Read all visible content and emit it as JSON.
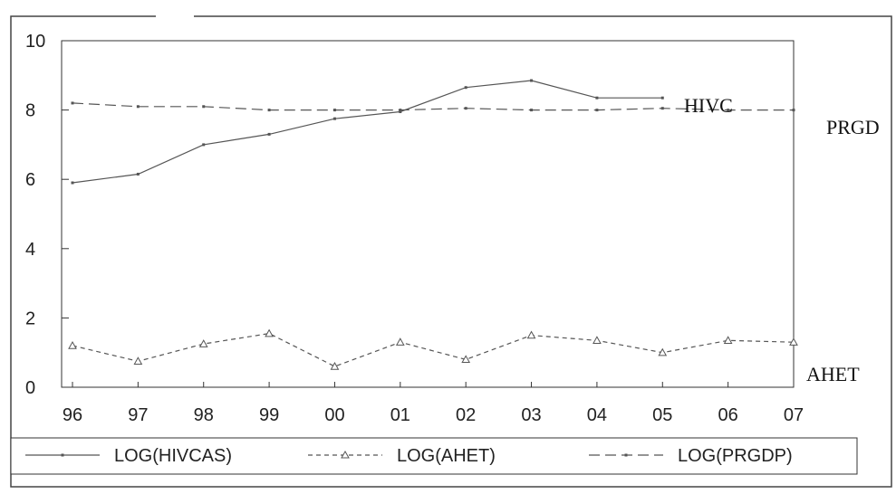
{
  "chart_data": {
    "type": "line",
    "title": "",
    "xlabel": "",
    "ylabel": "",
    "categories": [
      "96",
      "97",
      "98",
      "99",
      "00",
      "01",
      "02",
      "03",
      "04",
      "05",
      "06",
      "07"
    ],
    "ylim": [
      0,
      10
    ],
    "yticks": [
      "0",
      "2",
      "4",
      "6",
      "8",
      "10"
    ],
    "grid": false,
    "legend_position": "bottom",
    "series": [
      {
        "name": "LOG(HIVCAS)",
        "style": "solid",
        "values": [
          5.9,
          6.15,
          7.0,
          7.3,
          7.75,
          7.95,
          8.65,
          8.85,
          8.35,
          8.35,
          null,
          null
        ]
      },
      {
        "name": "LOG(AHET)",
        "style": "dashed-triangle",
        "values": [
          1.2,
          0.75,
          1.25,
          1.55,
          0.6,
          1.3,
          0.8,
          1.5,
          1.35,
          1.0,
          1.35,
          1.3
        ]
      },
      {
        "name": "LOG(PRGDP)",
        "style": "long-dash",
        "values": [
          8.2,
          8.1,
          8.1,
          8.0,
          8.0,
          8.0,
          8.05,
          8.0,
          8.0,
          8.05,
          8.0,
          8.0
        ]
      }
    ],
    "annotations": [
      {
        "text": "HIVC",
        "series": "LOG(HIVCAS)"
      },
      {
        "text": "PRGD",
        "series": "LOG(PRGDP)"
      },
      {
        "text": "AHET",
        "series": "LOG(AHET)"
      }
    ]
  },
  "colors": {
    "line": "#555555",
    "axis": "#333333",
    "text": "#222222",
    "background": "#ffffff"
  }
}
